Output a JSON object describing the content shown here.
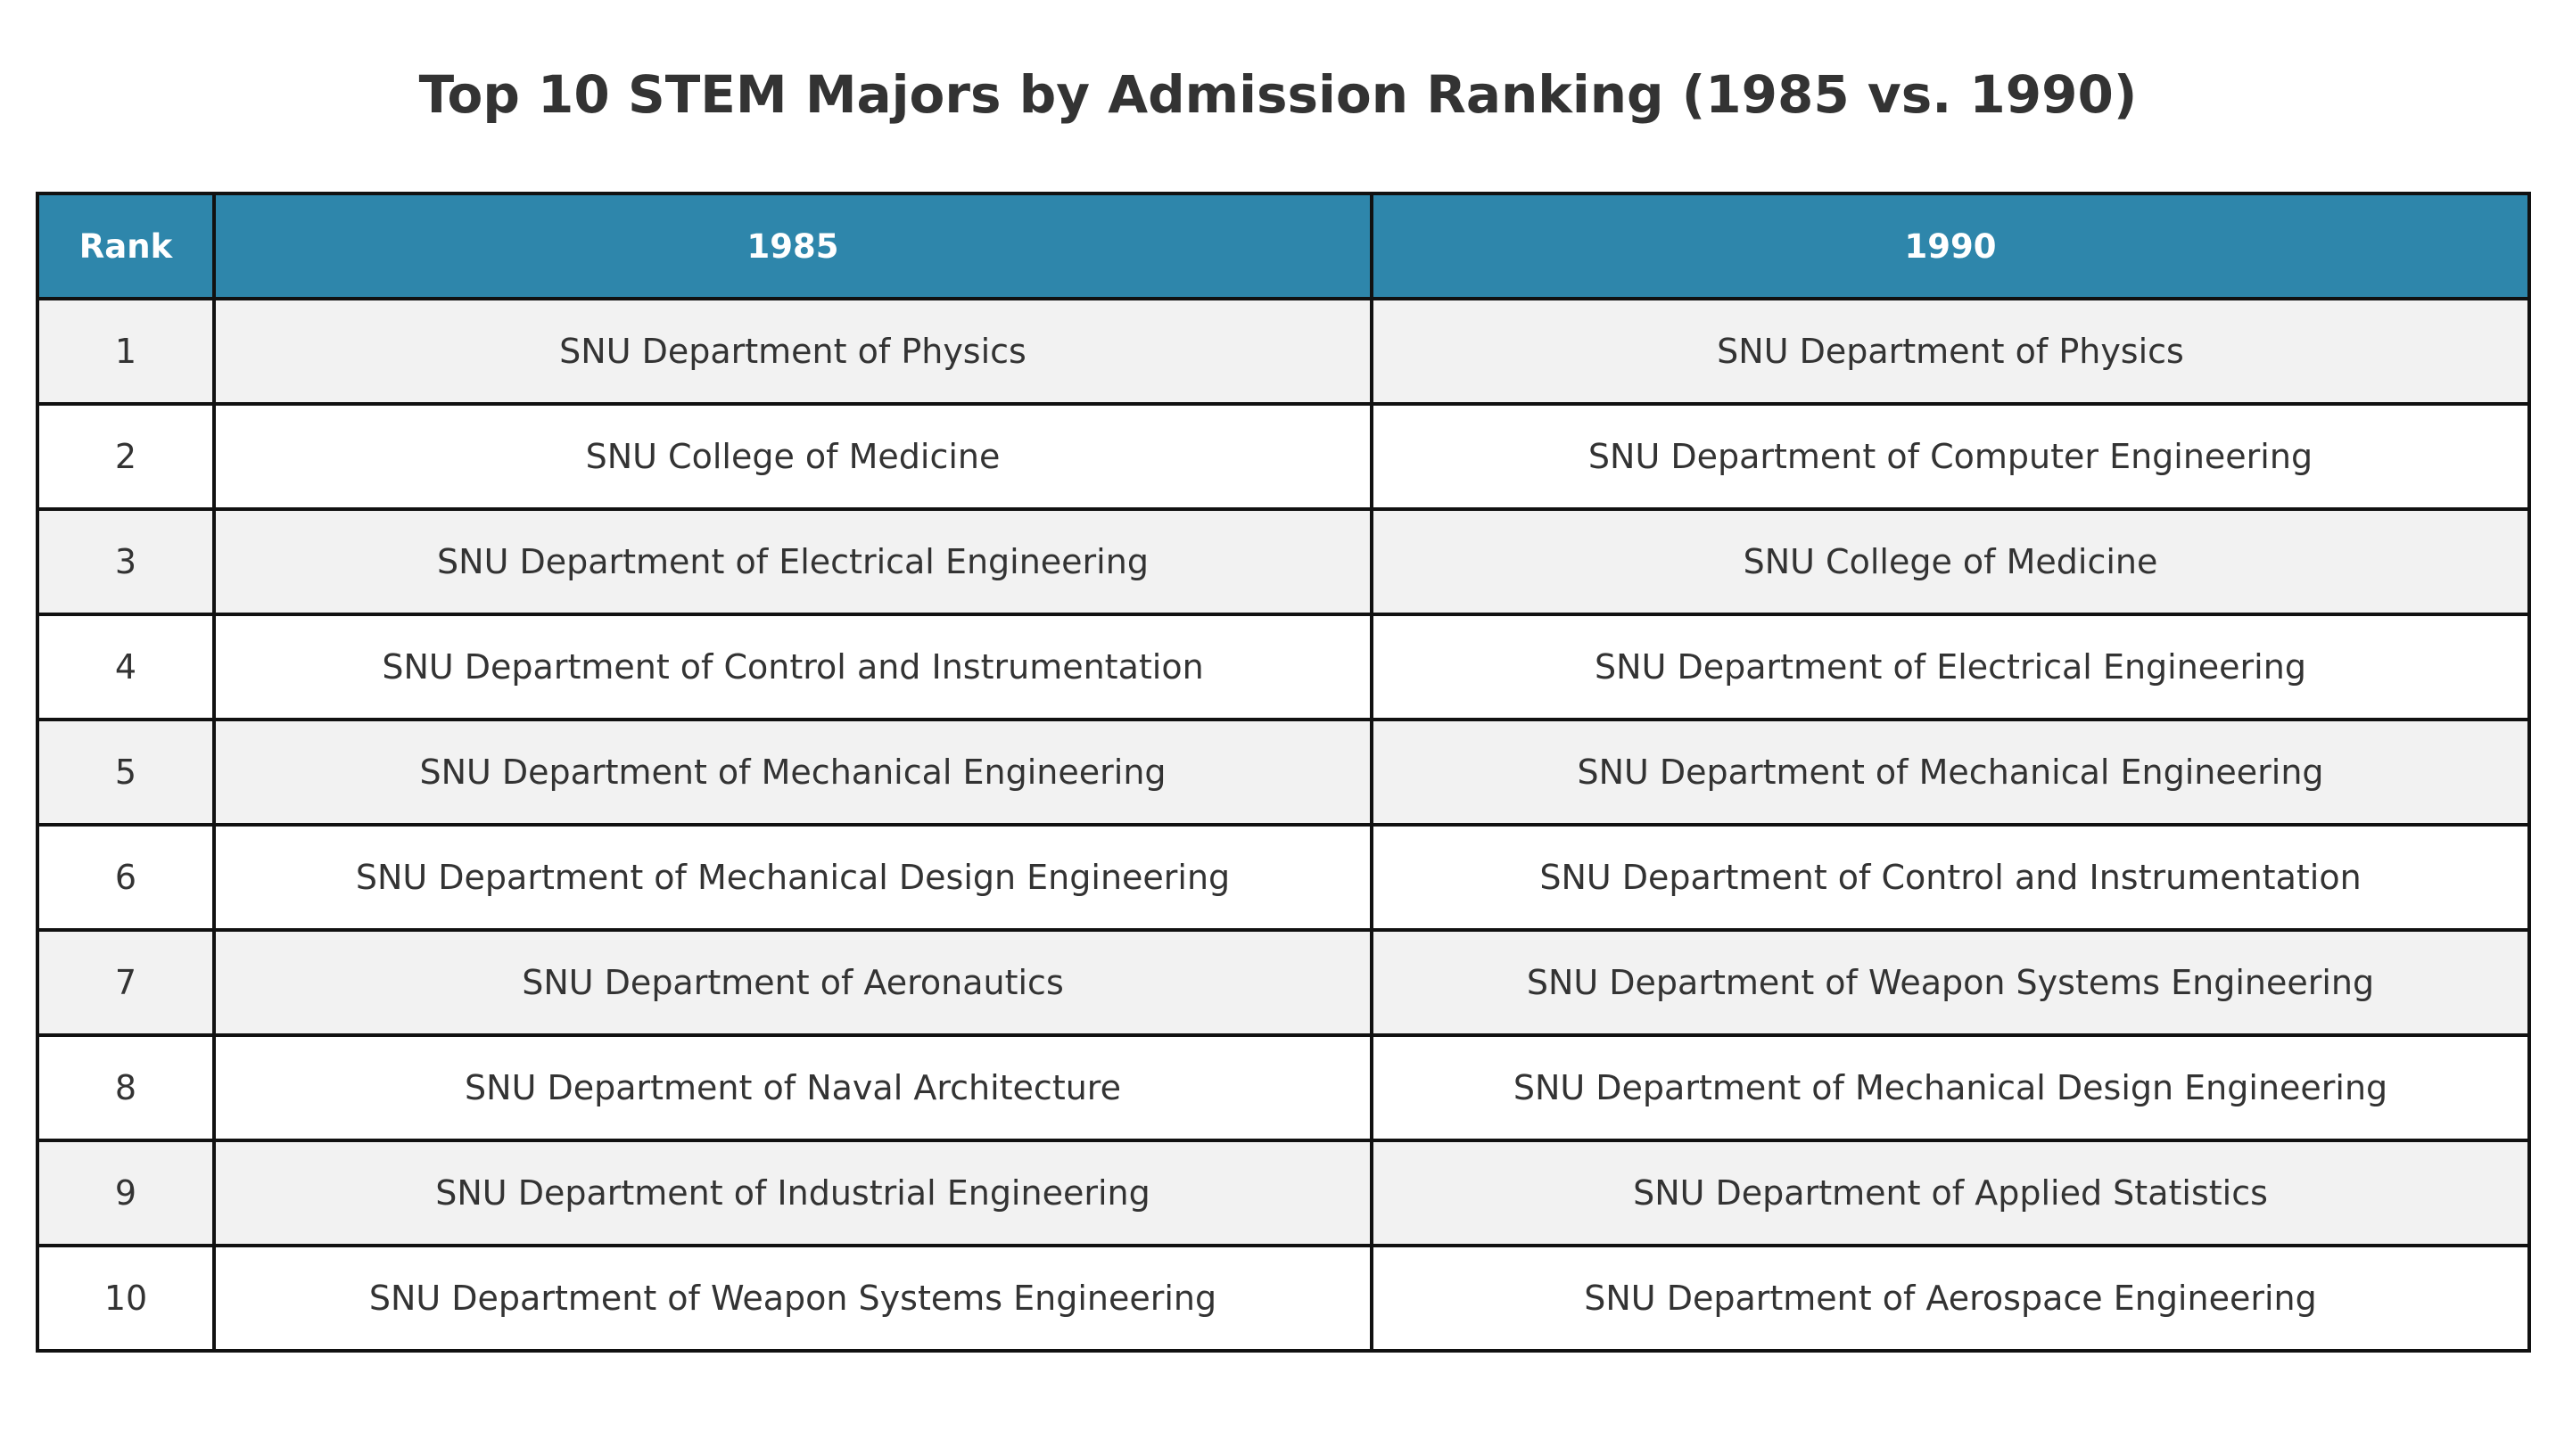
{
  "chart_data": {
    "type": "table",
    "title": "Top 10 STEM Majors by Admission Ranking (1985 vs. 1990)",
    "columns": [
      "Rank",
      "1985",
      "1990"
    ],
    "rows": [
      [
        "1",
        "SNU Department of Physics",
        "SNU Department of Physics"
      ],
      [
        "2",
        "SNU College of Medicine",
        "SNU Department of Computer Engineering"
      ],
      [
        "3",
        "SNU Department of Electrical Engineering",
        "SNU College of Medicine"
      ],
      [
        "4",
        "SNU Department of Control and Instrumentation",
        "SNU Department of Electrical Engineering"
      ],
      [
        "5",
        "SNU Department of Mechanical Engineering",
        "SNU Department of Mechanical Engineering"
      ],
      [
        "6",
        "SNU Department of Mechanical Design Engineering",
        "SNU Department of Control and Instrumentation"
      ],
      [
        "7",
        "SNU Department of Aeronautics",
        "SNU Department of Weapon Systems Engineering"
      ],
      [
        "8",
        "SNU Department of Naval Architecture",
        "SNU Department of Mechanical Design Engineering"
      ],
      [
        "9",
        "SNU Department of Industrial Engineering",
        "SNU Department of Applied Statistics"
      ],
      [
        "10",
        "SNU Department of Weapon Systems Engineering",
        "SNU Department of Aerospace Engineering"
      ]
    ],
    "colors": {
      "header_background": "#2e86ab",
      "header_text": "#ffffff",
      "row_odd_background": "#f2f2f2",
      "row_even_background": "#ffffff",
      "text": "#333333",
      "border": "#111111"
    }
  }
}
